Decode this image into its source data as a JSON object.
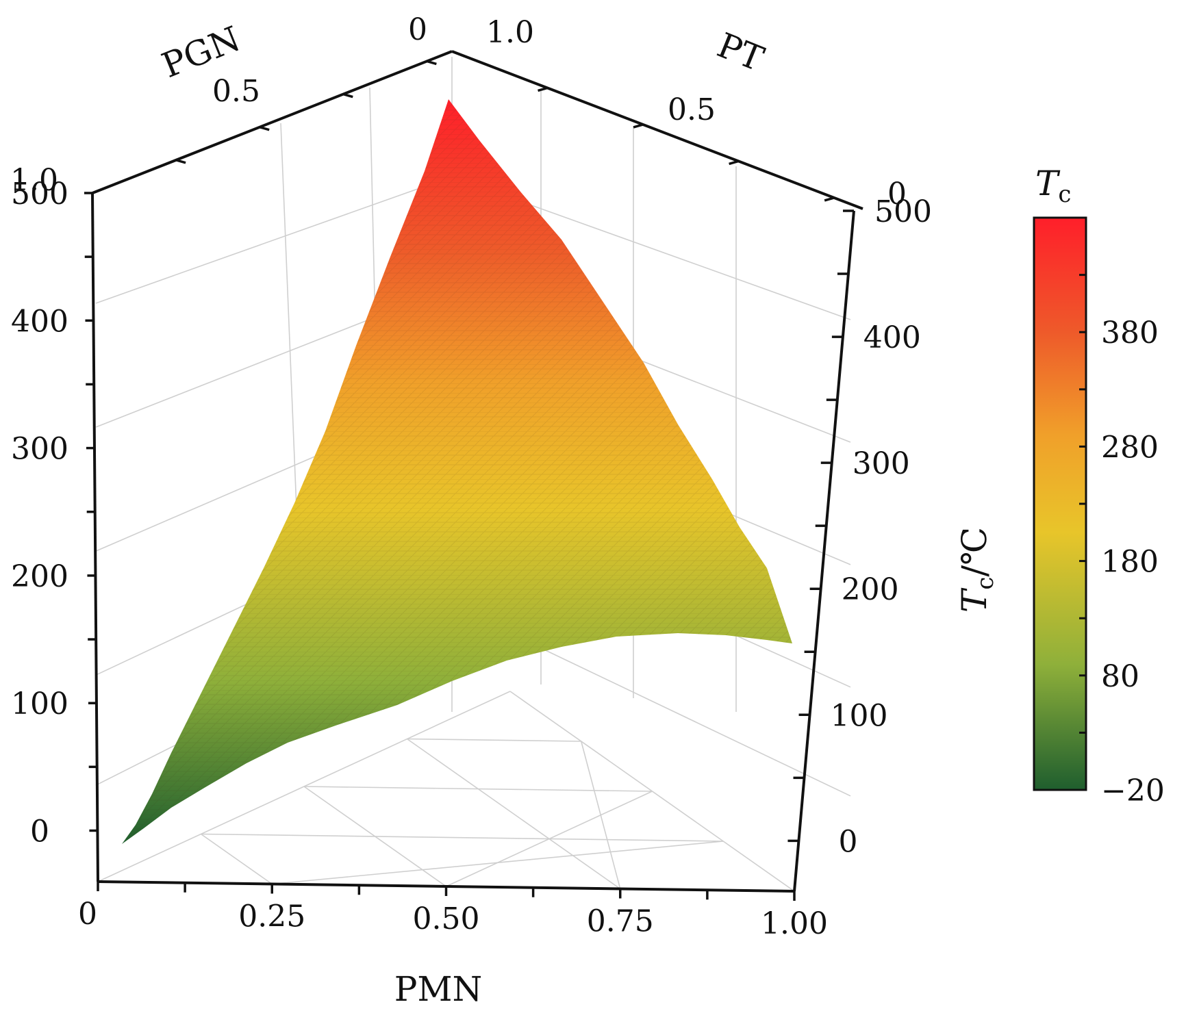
{
  "chart_data": {
    "type": "surface",
    "title": "",
    "surface": {
      "description_axes": [
        "PMN",
        "PGN",
        "PT"
      ],
      "apex_values": {
        "PT": 470,
        "PGN": -15,
        "PMN": 165
      },
      "surface_color_scale": [
        "#1f5e2e",
        "#8fb03a",
        "#e8c52a",
        "#f0a02a",
        "#ee5a2a",
        "#ff1f2a"
      ]
    },
    "axes": {
      "pmn": {
        "label": "PMN",
        "ticks": [
          "0",
          "0.25",
          "0.50",
          "0.75",
          "1.00"
        ]
      },
      "pgn": {
        "label": "PGN",
        "ticks": [
          "1.0",
          "0.5",
          "0"
        ]
      },
      "pt": {
        "label": "PT",
        "ticks": [
          "1.0",
          "0.5",
          "0"
        ]
      },
      "z_left": {
        "ticks": [
          "500",
          "400",
          "300",
          "200",
          "100",
          "0"
        ]
      },
      "z_right": {
        "label": "Tc/℃",
        "label_main": "T",
        "label_sub": "c",
        "label_unit": "/℃",
        "ticks": [
          "500",
          "400",
          "300",
          "200",
          "100",
          "0"
        ]
      },
      "z_range": [
        -40,
        500
      ]
    },
    "colorbar": {
      "title_main": "T",
      "title_sub": "c",
      "range": [
        -20,
        480
      ],
      "ticks": [
        "380",
        "280",
        "180",
        "80",
        "−20"
      ],
      "tick_values": [
        380,
        280,
        180,
        80,
        -20
      ],
      "colors": [
        "#1f5e2e",
        "#8fb03a",
        "#e8c52a",
        "#f0a02a",
        "#ee5a2a",
        "#ff1f2a"
      ]
    }
  }
}
